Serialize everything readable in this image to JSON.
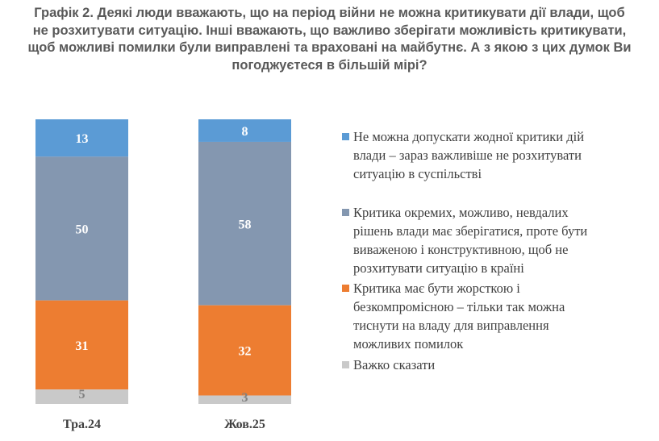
{
  "title_lines": [
    "Графік 2. Деякі люди вважають, що на період війни не можна критикувати дії влади, щоб",
    "не розхитувати ситуацію. Інші вважають, що важливо зберігати можливість критикувати,",
    "щоб можливі помилки були виправлені та враховані на майбутнє. А з якою з цих думок Ви",
    "погоджуєтеся в більшій мірі?"
  ],
  "chart_data": {
    "type": "bar",
    "stacked": true,
    "categories": [
      "Тра.24",
      "Жов.25"
    ],
    "ylim": [
      0,
      100
    ],
    "grid": false,
    "legend_position": "right",
    "series": [
      {
        "name": "Не можна допускати жодної критики дій влади – зараз важливіше не розхитувати ситуацію в суспільстві",
        "values": [
          13,
          8
        ],
        "color": "#5b9bd5",
        "label_color": "#ffffff"
      },
      {
        "name": "Критика окремих, можливо, невдалих рішень влади має зберігатися, проте бути виваженою і конструктивною, щоб не розхитувати ситуацію в країні",
        "values": [
          50,
          58
        ],
        "color": "#8497b0",
        "label_color": "#ffffff"
      },
      {
        "name": "Критика має бути жорсткою і безкомпромісною – тільки так можна тиснути на владу для виправлення можливих помилок",
        "values": [
          31,
          32
        ],
        "color": "#ed7d31",
        "label_color": "#ffffff"
      },
      {
        "name": "Важко сказати",
        "values": [
          5,
          3
        ],
        "color": "#c9c9c9",
        "label_color": "#808080"
      }
    ]
  },
  "legend_lines": [
    [
      "Не можна допускати жодної критики дій",
      "влади – зараз важливіше не розхитувати",
      "ситуацію в суспільстві"
    ],
    [
      "Критика окремих, можливо, невдалих",
      "рішень влади має зберігатися, проте бути",
      "виваженою і конструктивною, щоб не",
      "розхитувати ситуацію в країні"
    ],
    [
      "Критика має бути жорсткою і",
      "безкомпромісною – тільки так можна",
      "тиснути на владу для виправлення",
      "можливих помилок"
    ],
    [
      "Важко сказати"
    ]
  ]
}
